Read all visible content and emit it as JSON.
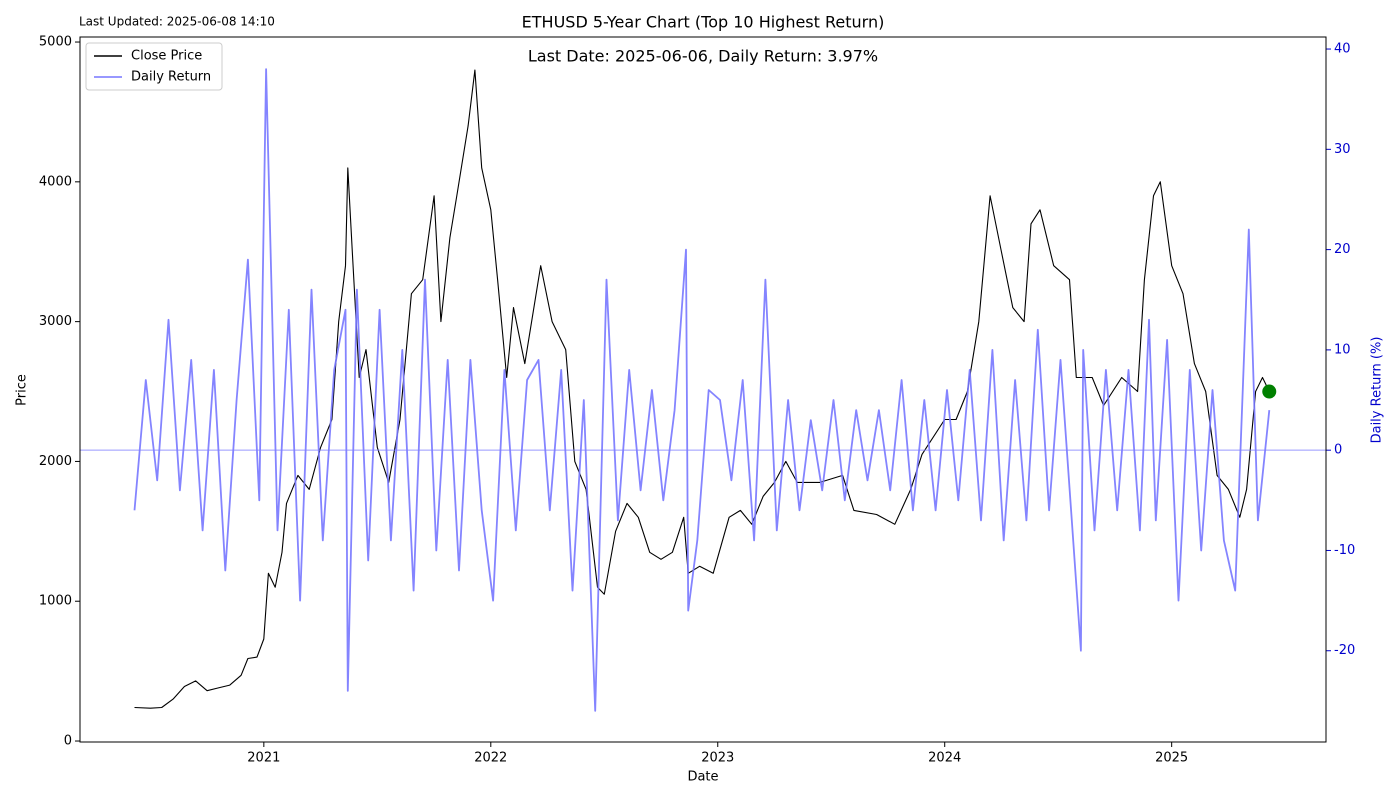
{
  "chart_data": {
    "type": "line",
    "title": "ETHUSD 5-Year Chart (Top 10 Highest Return)",
    "subtitle": "Last Updated: 2025-06-08 14:10",
    "annotation": "Last Date: 2025-06-06, Daily Return: 3.97%",
    "x_label": "Date",
    "y_label": "Price",
    "y2_label": "Daily Return (%)",
    "y2_color": "#0000cc",
    "xlim": [
      2020.19,
      2025.68
    ],
    "xticks": [
      2021,
      2022,
      2023,
      2024,
      2025
    ],
    "ylim": [
      -7,
      5036
    ],
    "yticks": [
      0,
      1000,
      2000,
      3000,
      4000,
      5000
    ],
    "y2lim": [
      -29.1,
      41.2
    ],
    "y2ticks": [
      -20,
      -10,
      0,
      10,
      20,
      30,
      40
    ],
    "legend": "upper left",
    "hline": {
      "axis": "y2",
      "value": 0,
      "color": "#8080ff"
    },
    "last_marker_color": "#008000",
    "series": [
      {
        "name": "Close Price",
        "color": "#000000",
        "x": [
          2020.43,
          2020.5,
          2020.55,
          2020.6,
          2020.65,
          2020.7,
          2020.75,
          2020.8,
          2020.85,
          2020.9,
          2020.93,
          2020.97,
          2021.0,
          2021.02,
          2021.05,
          2021.08,
          2021.1,
          2021.15,
          2021.2,
          2021.25,
          2021.3,
          2021.33,
          2021.36,
          2021.37,
          2021.39,
          2021.42,
          2021.45,
          2021.5,
          2021.55,
          2021.6,
          2021.65,
          2021.7,
          2021.75,
          2021.78,
          2021.82,
          2021.85,
          2021.9,
          2021.93,
          2021.96,
          2022.0,
          2022.03,
          2022.07,
          2022.1,
          2022.15,
          2022.22,
          2022.27,
          2022.33,
          2022.37,
          2022.42,
          2022.47,
          2022.5,
          2022.55,
          2022.6,
          2022.65,
          2022.7,
          2022.75,
          2022.8,
          2022.85,
          2022.87,
          2022.92,
          2022.98,
          2023.05,
          2023.1,
          2023.15,
          2023.2,
          2023.25,
          2023.3,
          2023.35,
          2023.45,
          2023.55,
          2023.6,
          2023.7,
          2023.78,
          2023.85,
          2023.9,
          2024.0,
          2024.05,
          2024.1,
          2024.15,
          2024.2,
          2024.25,
          2024.3,
          2024.35,
          2024.38,
          2024.42,
          2024.48,
          2024.55,
          2024.58,
          2024.65,
          2024.7,
          2024.78,
          2024.85,
          2024.88,
          2024.92,
          2024.95,
          2025.0,
          2025.05,
          2025.1,
          2025.15,
          2025.2,
          2025.25,
          2025.3,
          2025.33,
          2025.37,
          2025.4,
          2025.43
        ],
        "values": [
          240,
          235,
          240,
          300,
          390,
          430,
          360,
          380,
          400,
          470,
          590,
          600,
          730,
          1200,
          1100,
          1350,
          1700,
          1900,
          1800,
          2100,
          2300,
          3000,
          3400,
          4100,
          3500,
          2600,
          2800,
          2100,
          1850,
          2300,
          3200,
          3300,
          3900,
          3000,
          3600,
          3900,
          4400,
          4800,
          4100,
          3800,
          3300,
          2600,
          3100,
          2700,
          3400,
          3000,
          2800,
          2000,
          1800,
          1100,
          1050,
          1500,
          1700,
          1600,
          1350,
          1300,
          1350,
          1600,
          1200,
          1250,
          1200,
          1600,
          1650,
          1550,
          1750,
          1850,
          2000,
          1850,
          1850,
          1900,
          1650,
          1620,
          1550,
          1800,
          2050,
          2300,
          2300,
          2500,
          3000,
          3900,
          3500,
          3100,
          3000,
          3700,
          3800,
          3400,
          3300,
          2600,
          2600,
          2400,
          2600,
          2500,
          3300,
          3900,
          4000,
          3400,
          3200,
          2700,
          2500,
          1900,
          1800,
          1600,
          1800,
          2500,
          2600,
          2500
        ]
      },
      {
        "name": "Daily Return",
        "color": "#7777ff",
        "axis": "y2",
        "x": [
          2020.43,
          2020.48,
          2020.53,
          2020.58,
          2020.63,
          2020.68,
          2020.73,
          2020.78,
          2020.83,
          2020.88,
          2020.93,
          2020.98,
          2021.01,
          2021.06,
          2021.11,
          2021.16,
          2021.21,
          2021.26,
          2021.31,
          2021.36,
          2021.37,
          2021.41,
          2021.46,
          2021.51,
          2021.56,
          2021.61,
          2021.66,
          2021.71,
          2021.76,
          2021.81,
          2021.86,
          2021.91,
          2021.96,
          2022.01,
          2022.06,
          2022.11,
          2022.16,
          2022.21,
          2022.26,
          2022.31,
          2022.36,
          2022.41,
          2022.46,
          2022.51,
          2022.56,
          2022.61,
          2022.66,
          2022.71,
          2022.76,
          2022.81,
          2022.86,
          2022.87,
          2022.91,
          2022.96,
          2023.01,
          2023.06,
          2023.11,
          2023.16,
          2023.21,
          2023.26,
          2023.31,
          2023.36,
          2023.41,
          2023.46,
          2023.51,
          2023.56,
          2023.61,
          2023.66,
          2023.71,
          2023.76,
          2023.81,
          2023.86,
          2023.91,
          2023.96,
          2024.01,
          2024.06,
          2024.11,
          2024.16,
          2024.21,
          2024.26,
          2024.31,
          2024.36,
          2024.41,
          2024.46,
          2024.51,
          2024.56,
          2024.6,
          2024.61,
          2024.66,
          2024.71,
          2024.76,
          2024.81,
          2024.86,
          2024.9,
          2024.93,
          2024.98,
          2025.03,
          2025.08,
          2025.13,
          2025.18,
          2025.23,
          2025.28,
          2025.34,
          2025.38,
          2025.43
        ],
        "values": [
          -6,
          7,
          -3,
          13,
          -4,
          9,
          -8,
          8,
          -12,
          5,
          19,
          -5,
          38,
          -8,
          14,
          -15,
          16,
          -9,
          8,
          14,
          -24,
          16,
          -11,
          14,
          -9,
          10,
          -14,
          17,
          -10,
          9,
          -12,
          9,
          -6,
          -15,
          8,
          -8,
          7,
          9,
          -6,
          8,
          -14,
          5,
          -26,
          17,
          -7,
          8,
          -4,
          6,
          -5,
          4,
          20,
          -16,
          -9,
          6,
          5,
          -3,
          7,
          -9,
          17,
          -8,
          5,
          -6,
          3,
          -4,
          5,
          -5,
          4,
          -3,
          4,
          -4,
          7,
          -6,
          5,
          -6,
          6,
          -5,
          8,
          -7,
          10,
          -9,
          7,
          -7,
          12,
          -6,
          9,
          -7,
          -20,
          10,
          -8,
          8,
          -6,
          8,
          -8,
          13,
          -7,
          11,
          -15,
          8,
          -10,
          6,
          -9,
          -14,
          22,
          -7,
          4
        ]
      }
    ]
  }
}
